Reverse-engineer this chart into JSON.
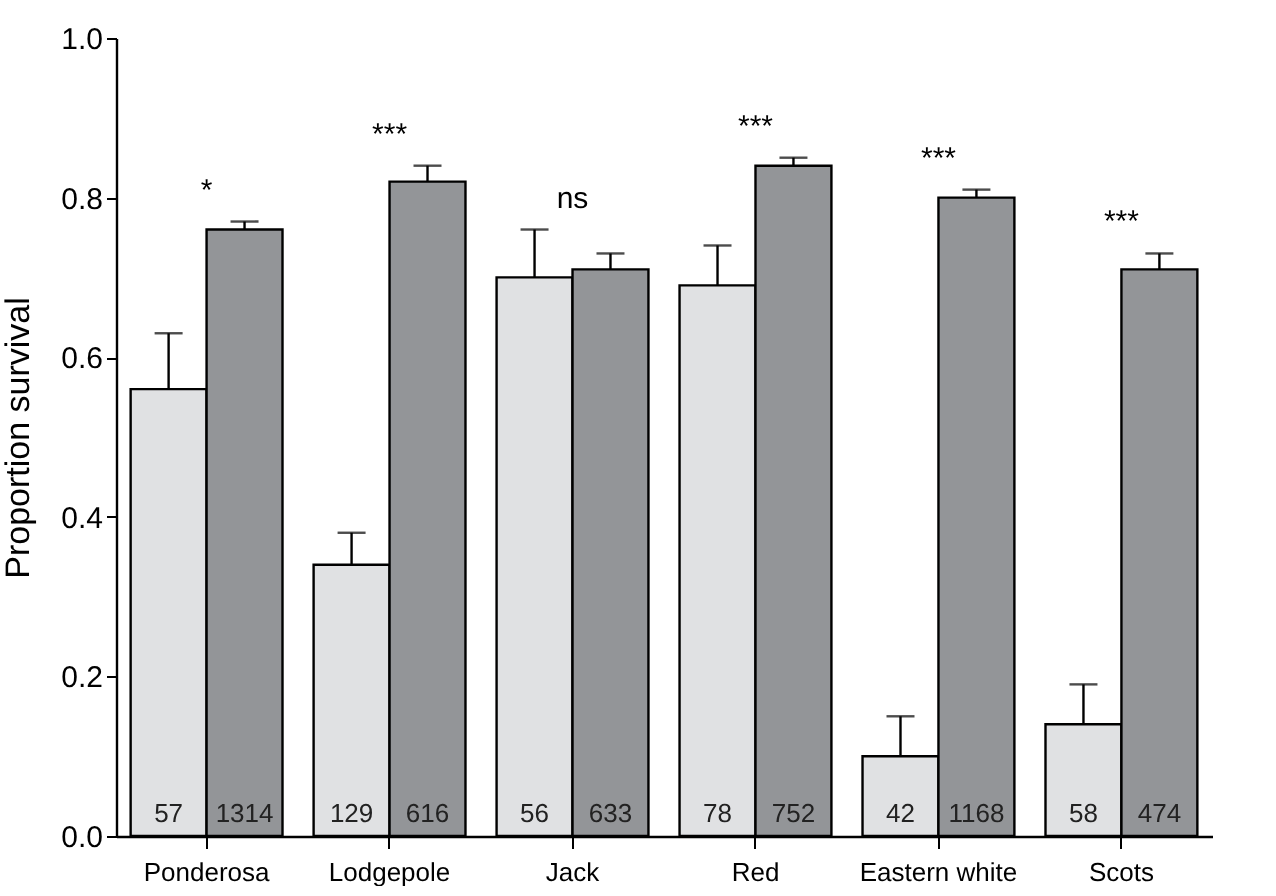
{
  "chart_data": {
    "type": "bar",
    "ylabel": "Proportion survival",
    "categories": [
      "Ponderosa",
      "Lodgepole",
      "Jack",
      "Red",
      "Eastern white",
      "Scots"
    ],
    "series": [
      {
        "color": "#e0e1e3",
        "values": [
          0.56,
          0.34,
          0.7,
          0.69,
          0.1,
          0.14
        ],
        "errors": [
          [
            0.56,
            0.63
          ],
          [
            0.34,
            0.38
          ],
          [
            0.7,
            0.76
          ],
          [
            0.69,
            0.74
          ],
          [
            0.1,
            0.15
          ],
          [
            0.14,
            0.19
          ]
        ]
      },
      {
        "color": "#939598",
        "values": [
          0.76,
          0.82,
          0.71,
          0.84,
          0.8,
          0.71
        ],
        "errors": [
          [
            0.76,
            0.77
          ],
          [
            0.82,
            0.84
          ],
          [
            0.71,
            0.73
          ],
          [
            0.84,
            0.85
          ],
          [
            0.8,
            0.81
          ],
          [
            0.71,
            0.73
          ]
        ]
      }
    ],
    "ylim": [
      0,
      1
    ],
    "yticks": [
      {
        "value": 0,
        "label": "0.0"
      },
      {
        "value": 0.2,
        "label": "0.2"
      },
      {
        "value": 0.4,
        "label": "0.4"
      },
      {
        "value": 0.6,
        "label": "0.6"
      },
      {
        "value": 0.8,
        "label": "0.8"
      },
      {
        "value": 1,
        "label": "1.0"
      }
    ],
    "grid": false,
    "legend": false,
    "annotations": [
      "*",
      "***",
      "ns",
      "***",
      "***",
      "***",
      "57",
      "1314",
      "129",
      "616",
      "56",
      "633",
      "78",
      "752",
      "42",
      "1168",
      "58",
      "474"
    ]
  }
}
